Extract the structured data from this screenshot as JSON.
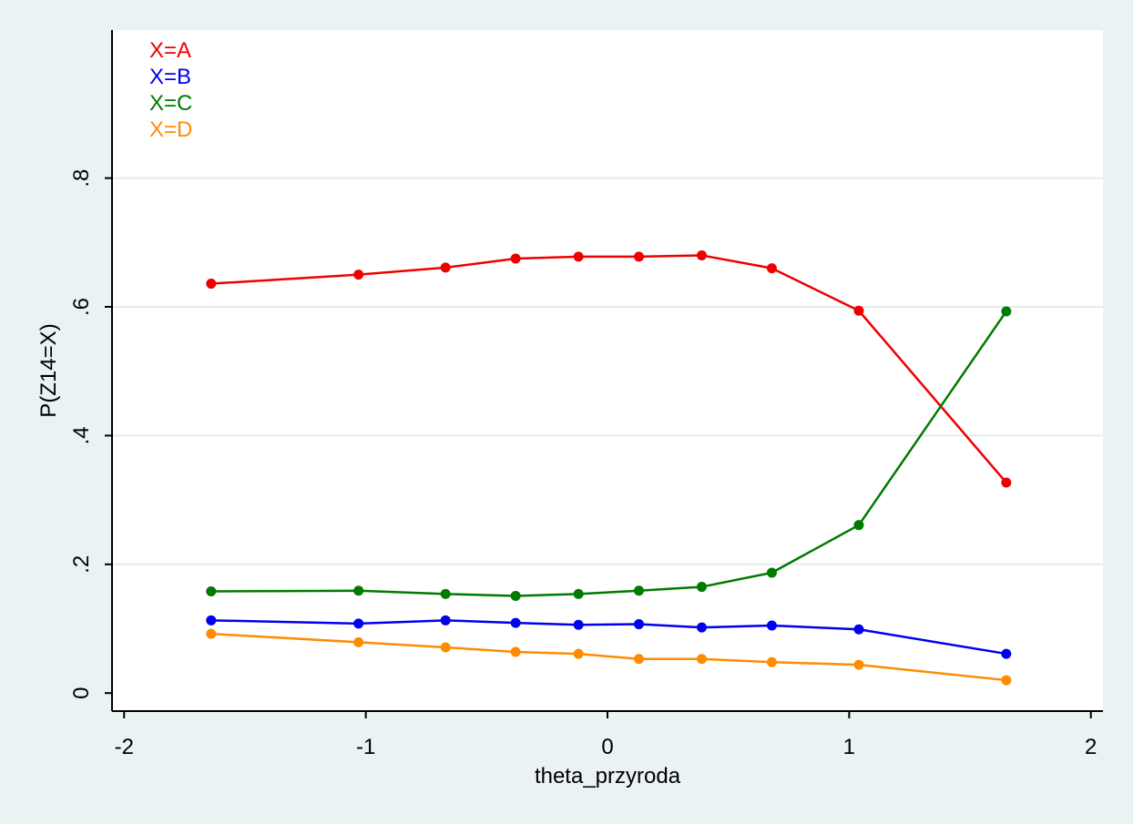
{
  "chart_data": {
    "type": "line",
    "title": "",
    "xlabel": "theta_przyroda",
    "ylabel": "P(Z14=X)",
    "xlim": [
      -2.05,
      2.05
    ],
    "ylim": [
      -0.028,
      1.03
    ],
    "xticks": [
      -2,
      -1,
      0,
      1,
      2
    ],
    "xtick_labels": [
      "-2",
      "-1",
      "0",
      "1",
      "2"
    ],
    "yticks": [
      0,
      0.2,
      0.4,
      0.6,
      0.8
    ],
    "ytick_labels": [
      "0",
      ".2",
      ".4",
      ".6",
      ".8"
    ],
    "grid": true,
    "legend_position": "top-left",
    "x": [
      -1.64,
      -1.03,
      -0.67,
      -0.38,
      -0.12,
      0.13,
      0.39,
      0.68,
      1.04,
      1.65
    ],
    "series": [
      {
        "name": "X=A",
        "color": "#ee0000",
        "values": [
          0.636,
          0.65,
          0.661,
          0.675,
          0.678,
          0.678,
          0.68,
          0.66,
          0.594,
          0.327
        ]
      },
      {
        "name": "X=B",
        "color": "#0000ee",
        "values": [
          0.113,
          0.108,
          0.113,
          0.109,
          0.106,
          0.107,
          0.102,
          0.105,
          0.099,
          0.061
        ]
      },
      {
        "name": "X=C",
        "color": "#007a00",
        "values": [
          0.158,
          0.159,
          0.154,
          0.151,
          0.154,
          0.159,
          0.165,
          0.187,
          0.261,
          0.593
        ]
      },
      {
        "name": "X=D",
        "color": "#ff8c00",
        "values": [
          0.092,
          0.079,
          0.071,
          0.064,
          0.061,
          0.053,
          0.053,
          0.048,
          0.044,
          0.02
        ]
      }
    ]
  }
}
